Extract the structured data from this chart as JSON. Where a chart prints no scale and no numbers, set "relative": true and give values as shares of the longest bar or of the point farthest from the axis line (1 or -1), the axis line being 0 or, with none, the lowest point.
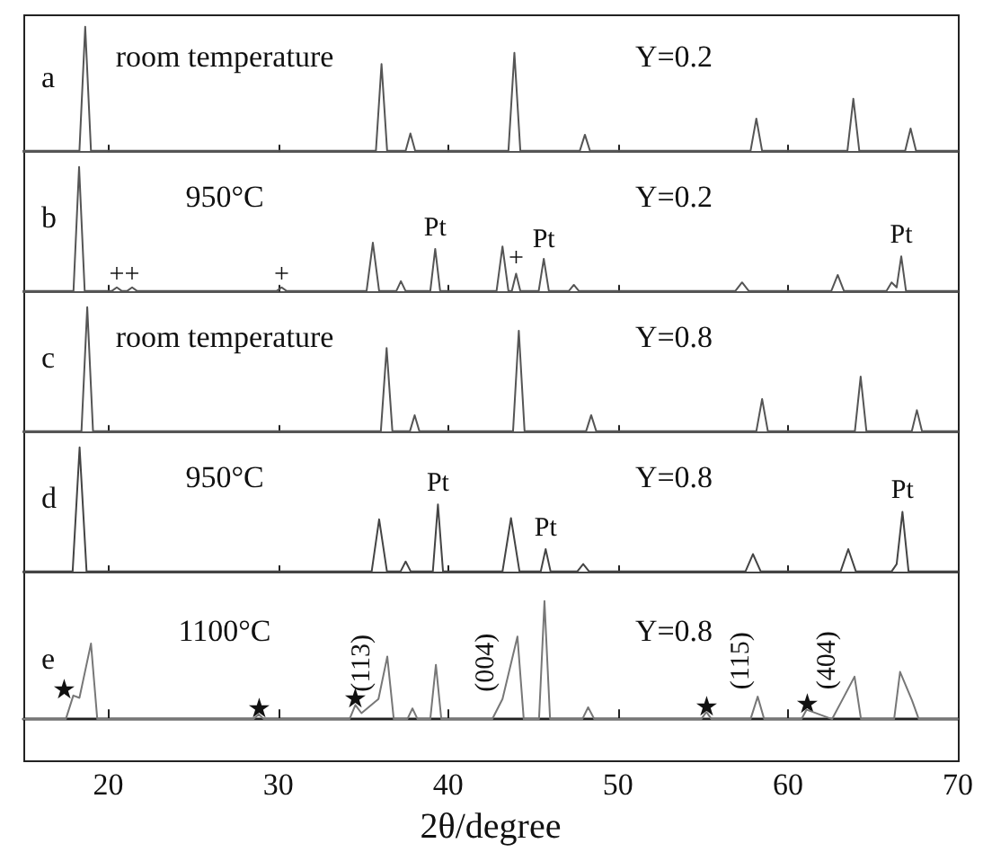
{
  "chart_data": [
    {
      "type": "line",
      "relative": true,
      "xlim": [
        15,
        70
      ],
      "xticks": [
        20,
        30,
        40,
        50,
        60,
        70
      ],
      "tick_labels": false,
      "annotations": [
        "a",
        "room temperature",
        "Y=0.2"
      ],
      "series": [
        {
          "color": "#555555",
          "x": [
            15,
            18.3,
            18.64,
            18.98,
            35.75,
            36.08,
            36.41,
            37.5,
            37.78,
            38.06,
            43.55,
            43.9,
            44.25,
            47.75,
            48.05,
            48.35,
            57.8,
            58.14,
            58.48,
            63.5,
            63.85,
            64.2,
            66.9,
            67.22,
            67.54,
            70
          ],
          "values": [
            0,
            0,
            1,
            0,
            0,
            0.7,
            0,
            0,
            0.14,
            0,
            0,
            0.79,
            0,
            0,
            0.13,
            0,
            0,
            0.26,
            0,
            0,
            0.42,
            0,
            0,
            0.18,
            0,
            0
          ]
        }
      ]
    },
    {
      "type": "line",
      "relative": true,
      "xlim": [
        15,
        70
      ],
      "xticks": [
        20,
        30,
        40,
        50,
        60,
        70
      ],
      "tick_labels": false,
      "annotations": [
        "b",
        "950°C",
        "Y=0.2",
        {
          "text": "+",
          "x": 20.5,
          "y": 0.02
        },
        {
          "text": "+",
          "x": 21.4,
          "y": 0.02
        },
        {
          "text": "+",
          "x": 30.2,
          "y": 0.02
        },
        {
          "text": "Pt",
          "x": 39.24,
          "y": 0.4
        },
        {
          "text": "+",
          "x": 44.0,
          "y": 0.15
        },
        {
          "text": "Pt",
          "x": 45.63,
          "y": 0.3
        },
        {
          "text": "Pt",
          "x": 66.67,
          "y": 0.34
        }
      ],
      "series": [
        {
          "color": "#555555",
          "x": [
            15,
            17.95,
            18.28,
            18.61,
            20.2,
            20.5,
            20.8,
            21.1,
            21.4,
            21.7,
            29.9,
            30.2,
            30.5,
            35.2,
            35.57,
            35.94,
            36.95,
            37.22,
            37.5,
            38.95,
            39.24,
            39.53,
            42.85,
            43.2,
            43.55,
            43.75,
            44.0,
            44.25,
            45.33,
            45.63,
            45.93,
            47.1,
            47.4,
            47.7,
            56.9,
            57.3,
            57.7,
            62.55,
            62.93,
            63.3,
            65.8,
            66.1,
            66.4,
            66.67,
            66.95,
            70
          ],
          "values": [
            0,
            0,
            1,
            0,
            0,
            0.03,
            0,
            0,
            0.03,
            0,
            0,
            0.03,
            0,
            0,
            0.39,
            0,
            0,
            0.08,
            0,
            0,
            0.34,
            0,
            0,
            0.36,
            0,
            0,
            0.14,
            0,
            0,
            0.26,
            0,
            0,
            0.05,
            0,
            0,
            0.07,
            0,
            0,
            0.13,
            0,
            0,
            0.07,
            0.03,
            0.28,
            0,
            0
          ]
        }
      ]
    },
    {
      "type": "line",
      "relative": true,
      "xlim": [
        15,
        70
      ],
      "xticks": [
        20,
        30,
        40,
        50,
        60,
        70
      ],
      "tick_labels": false,
      "annotations": [
        "c",
        "room temperature",
        "Y=0.8"
      ],
      "series": [
        {
          "color": "#555555",
          "x": [
            15,
            18.42,
            18.76,
            19.1,
            36.04,
            36.38,
            36.72,
            37.75,
            38.03,
            38.31,
            43.82,
            44.16,
            44.5,
            48.12,
            48.42,
            48.72,
            58.14,
            58.48,
            58.82,
            63.94,
            64.28,
            64.62,
            67.29,
            67.59,
            67.89,
            70
          ],
          "values": [
            0,
            0,
            1,
            0,
            0,
            0.67,
            0,
            0,
            0.13,
            0,
            0,
            0.81,
            0,
            0,
            0.13,
            0,
            0,
            0.26,
            0,
            0,
            0.44,
            0,
            0,
            0.17,
            0,
            0
          ]
        }
      ]
    },
    {
      "type": "line",
      "relative": true,
      "xlim": [
        15,
        70
      ],
      "xticks": [
        20,
        30,
        40,
        50,
        60,
        70
      ],
      "tick_labels": false,
      "annotations": [
        "d",
        "950°C",
        "Y=0.8",
        {
          "text": "Pt",
          "x": 39.4,
          "y": 0.6
        },
        {
          "text": "Pt",
          "x": 45.74,
          "y": 0.24
        },
        {
          "text": "Pt",
          "x": 66.74,
          "y": 0.54
        }
      ],
      "series": [
        {
          "color": "#444444",
          "x": [
            15,
            17.9,
            18.31,
            18.72,
            35.5,
            35.94,
            36.4,
            37.2,
            37.5,
            37.8,
            39.1,
            39.4,
            39.7,
            43.2,
            43.7,
            44.2,
            45.45,
            45.74,
            46.03,
            47.6,
            47.95,
            48.3,
            57.5,
            57.94,
            58.4,
            63.1,
            63.55,
            64.0,
            66.1,
            66.4,
            66.74,
            67.1,
            70
          ],
          "values": [
            0,
            0,
            1,
            0,
            0,
            0.42,
            0,
            0,
            0.08,
            0,
            0,
            0.54,
            0,
            0,
            0.43,
            0,
            0,
            0.18,
            0,
            0,
            0.06,
            0,
            0,
            0.14,
            0,
            0,
            0.18,
            0,
            0,
            0.06,
            0.48,
            0,
            0
          ]
        }
      ]
    },
    {
      "type": "line",
      "relative": true,
      "xlim": [
        15,
        70
      ],
      "xticks": [
        20,
        30,
        40,
        50,
        60,
        70
      ],
      "tick_labels": "x",
      "xlabel": "2θ/degree",
      "annotations": [
        "e",
        "1100°C",
        "Y=0.8",
        {
          "text": "★",
          "x": 17.4,
          "y": 0.12
        },
        {
          "text": "★",
          "x": 28.85,
          "y": -0.04
        },
        {
          "text": "★",
          "x": 34.54,
          "y": 0.05
        },
        {
          "text": "(113)",
          "x": 35.9,
          "y": 0.17
        },
        {
          "text": "(004)",
          "x": 43.2,
          "y": 0.17
        },
        {
          "text": "★",
          "x": 55.2,
          "y": -0.02
        },
        {
          "text": "(115)",
          "x": 58.22,
          "y": 0.19
        },
        {
          "text": "★",
          "x": 61.1,
          "y": 0.0
        },
        {
          "text": "(404)",
          "x": 63.3,
          "y": 0.19
        }
      ],
      "series": [
        {
          "color": "#777777",
          "x": [
            15,
            17.5,
            17.94,
            18.3,
            18.98,
            19.35,
            28.55,
            28.85,
            29.15,
            34.2,
            34.54,
            34.9,
            35.9,
            36.42,
            36.8,
            37.6,
            37.9,
            38.2,
            38.95,
            39.28,
            39.6,
            42.6,
            43.2,
            44.08,
            44.45,
            45.35,
            45.67,
            46.0,
            47.9,
            48.24,
            48.6,
            54.9,
            55.2,
            55.5,
            57.8,
            58.22,
            58.6,
            60.8,
            61.1,
            62.6,
            63.3,
            63.92,
            64.3,
            66.25,
            66.6,
            67.3,
            67.7,
            70
          ],
          "values": [
            0,
            0,
            0.2,
            0.18,
            0.64,
            0,
            0,
            0.04,
            0,
            0,
            0.12,
            0.05,
            0.17,
            0.53,
            0,
            0,
            0.09,
            0,
            0,
            0.46,
            0,
            0,
            0.17,
            0.7,
            0,
            0,
            1,
            0,
            0,
            0.1,
            0,
            0,
            0.06,
            0,
            0,
            0.19,
            0,
            0,
            0.08,
            0,
            0.19,
            0.36,
            0,
            0,
            0.4,
            0.16,
            0,
            0
          ]
        }
      ]
    }
  ]
}
